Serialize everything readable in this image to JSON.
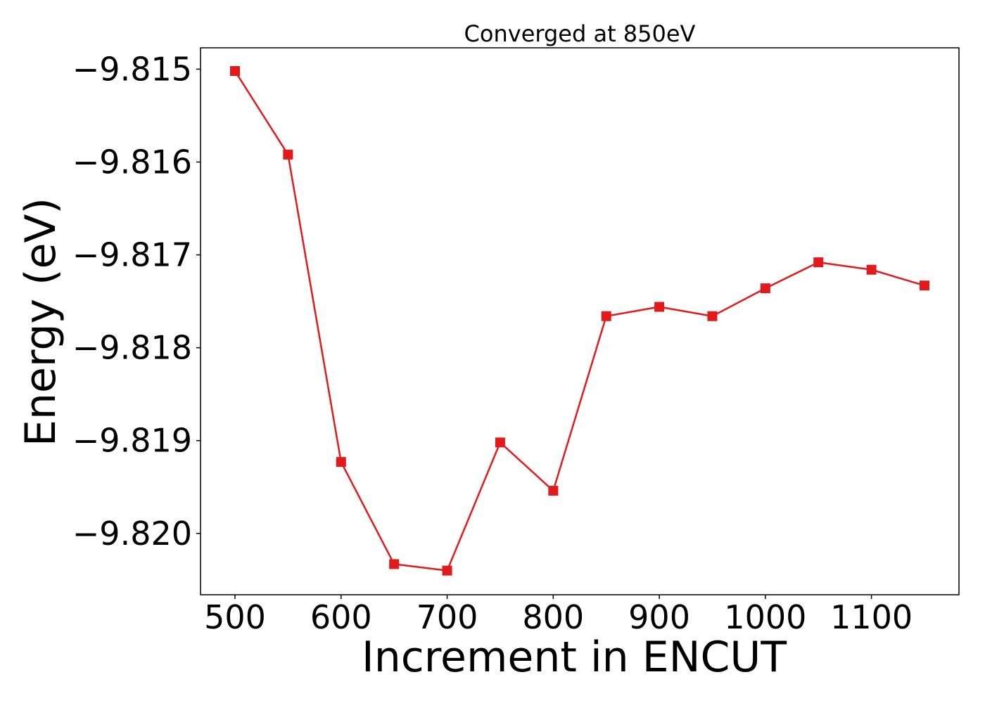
{
  "chart_data": {
    "type": "line",
    "title": "Converged at 850eV",
    "xlabel": "Increment in ENCUT",
    "ylabel": "Energy (eV)",
    "xlim": [
      467.5,
      1182.5
    ],
    "ylim": [
      -9.82066,
      -9.81477
    ],
    "x_ticks": [
      500,
      600,
      700,
      800,
      900,
      1000,
      1100
    ],
    "x_tick_labels": [
      "500",
      "600",
      "700",
      "800",
      "900",
      "1000",
      "1100"
    ],
    "y_ticks": [
      -9.815,
      -9.816,
      -9.817,
      -9.818,
      -9.819,
      -9.82
    ],
    "y_tick_labels": [
      "−9.815",
      "−9.816",
      "−9.817",
      "−9.818",
      "−9.819",
      "−9.820"
    ],
    "grid": false,
    "marker": "square",
    "series": [
      {
        "color": "#e31a1c",
        "x": [
          500,
          550,
          600,
          650,
          700,
          750,
          800,
          850,
          900,
          950,
          1000,
          1050,
          1100,
          1150
        ],
        "y": [
          -9.81502,
          -9.81592,
          -9.81923,
          -9.82033,
          -9.8204,
          -9.81902,
          -9.81954,
          -9.81766,
          -9.81756,
          -9.81766,
          -9.81736,
          -9.81708,
          -9.81716,
          -9.81733
        ]
      }
    ]
  }
}
